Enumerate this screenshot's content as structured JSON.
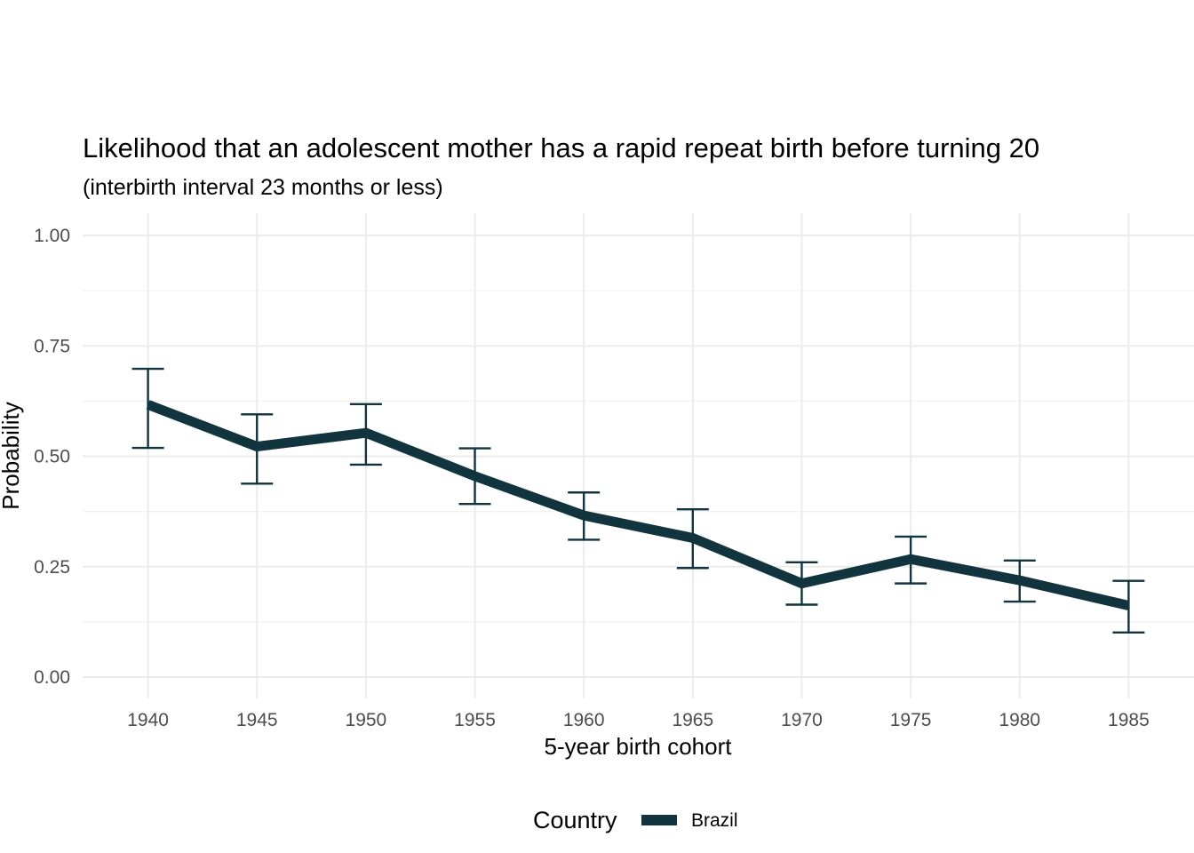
{
  "chart_data": {
    "type": "line",
    "title": "Likelihood that an adolescent mother has a rapid repeat birth before turning 20",
    "subtitle": "(interbirth interval 23 months or less)",
    "xlabel": "5-year birth cohort",
    "ylabel": "Probability",
    "x": [
      1940,
      1945,
      1950,
      1955,
      1960,
      1965,
      1970,
      1975,
      1980,
      1985
    ],
    "x_ticks": [
      "1940",
      "1945",
      "1950",
      "1955",
      "1960",
      "1965",
      "1970",
      "1975",
      "1980",
      "1985"
    ],
    "y_ticks": [
      "0.00",
      "0.25",
      "0.50",
      "0.75",
      "1.00"
    ],
    "ylim": [
      0,
      1
    ],
    "xlim": [
      1937,
      1988
    ],
    "grid": true,
    "legend": {
      "title": "Country",
      "position": "bottom"
    },
    "series": [
      {
        "name": "Brazil",
        "color": "#11343e",
        "values": [
          0.617,
          0.522,
          0.553,
          0.455,
          0.366,
          0.315,
          0.212,
          0.267,
          0.219,
          0.162
        ],
        "lower": [
          0.519,
          0.438,
          0.481,
          0.392,
          0.311,
          0.247,
          0.164,
          0.212,
          0.171,
          0.101
        ],
        "upper": [
          0.698,
          0.595,
          0.618,
          0.518,
          0.418,
          0.38,
          0.26,
          0.318,
          0.264,
          0.218
        ]
      }
    ]
  }
}
